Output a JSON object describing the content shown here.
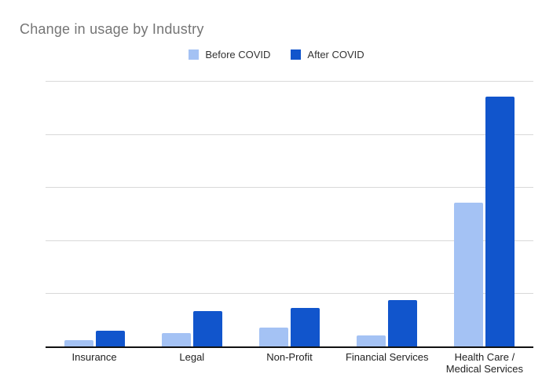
{
  "title": "Change in usage by Industry",
  "legend": {
    "items": [
      {
        "label": "Before COVID",
        "color": "#a4c2f4"
      },
      {
        "label": "After COVID",
        "color": "#1155cc"
      }
    ]
  },
  "chart_data": {
    "type": "bar",
    "title": "Change in usage by Industry",
    "categories": [
      "Insurance",
      "Legal",
      "Non-Profit",
      "Financial Services",
      "Health Care / Medical Services"
    ],
    "series": [
      {
        "name": "Before COVID",
        "color": "#a4c2f4",
        "values": [
          1.2,
          2.5,
          3.6,
          2.0,
          27
        ]
      },
      {
        "name": "After COVID",
        "color": "#1155cc",
        "values": [
          3.0,
          6.7,
          7.3,
          8.8,
          47
        ]
      }
    ],
    "xlabel": "",
    "ylabel": "",
    "ylim": [
      0,
      50
    ],
    "gridline_interval": 10,
    "y_tick_labels_shown": false,
    "grid": true,
    "legend_position": "top"
  },
  "colors": {
    "title_text": "#757575",
    "legend_text": "#333333",
    "axis_label_text": "#222222",
    "gridline": "#d9d9d9",
    "axis_line": "#111111",
    "background": "#ffffff"
  }
}
